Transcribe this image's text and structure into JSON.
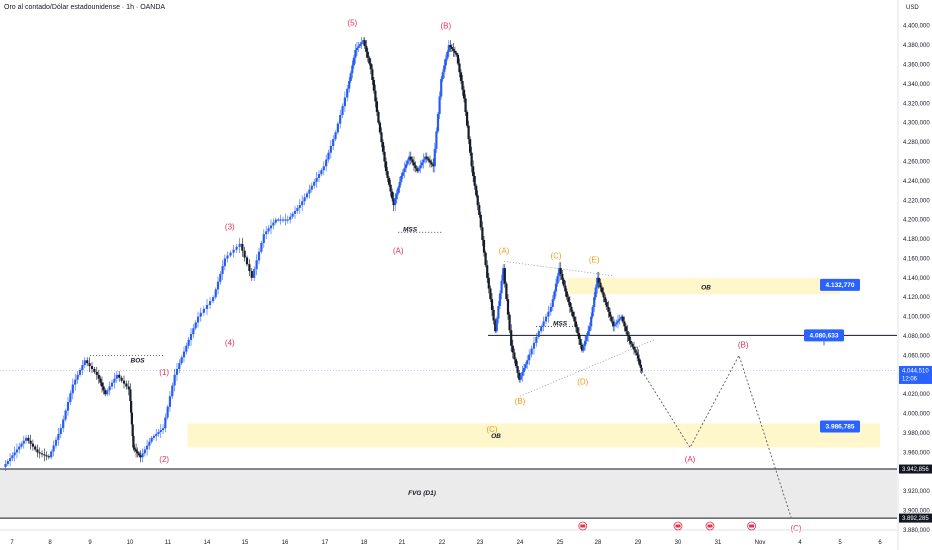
{
  "header": {
    "title": "Oro al contado/Dólar estadounidense · 1h · OANDA",
    "currency": "USD"
  },
  "chart_data": {
    "type": "candlestick",
    "ylim": [
      3880,
      4410
    ],
    "y_ticks": [
      {
        "value": 4400,
        "label": "4.400,000"
      },
      {
        "value": 4380,
        "label": "4.380,000"
      },
      {
        "value": 4360,
        "label": "4.360,000"
      },
      {
        "value": 4340,
        "label": "4.340,000"
      },
      {
        "value": 4320,
        "label": "4.320,000"
      },
      {
        "value": 4300,
        "label": "4.300,000"
      },
      {
        "value": 4280,
        "label": "4.280,000"
      },
      {
        "value": 4260,
        "label": "4.260,000"
      },
      {
        "value": 4240,
        "label": "4.240,000"
      },
      {
        "value": 4220,
        "label": "4.220,000"
      },
      {
        "value": 4200,
        "label": "4.200,000"
      },
      {
        "value": 4180,
        "label": "4.180,000"
      },
      {
        "value": 4160,
        "label": "4.160,000"
      },
      {
        "value": 4140,
        "label": "4.140,000"
      },
      {
        "value": 4120,
        "label": "4.120,000"
      },
      {
        "value": 4100,
        "label": "4.100,000"
      },
      {
        "value": 4080,
        "label": "4.080,000"
      },
      {
        "value": 4060,
        "label": "4.060,000"
      },
      {
        "value": 4020,
        "label": "4.020,000"
      },
      {
        "value": 4000,
        "label": "4.000,000"
      },
      {
        "value": 3980,
        "label": "3.980,000"
      },
      {
        "value": 3960,
        "label": "3.960,000"
      },
      {
        "value": 3920,
        "label": "3.920,000"
      },
      {
        "value": 3900,
        "label": "3.900,000"
      },
      {
        "value": 3880,
        "label": "3.880,000"
      }
    ],
    "x_ticks": [
      {
        "label": "7",
        "day": 7
      },
      {
        "label": "8",
        "day": 8
      },
      {
        "label": "9",
        "day": 9
      },
      {
        "label": "10",
        "day": 10
      },
      {
        "label": "11",
        "day": 11
      },
      {
        "label": "14",
        "day": 12
      },
      {
        "label": "15",
        "day": 13
      },
      {
        "label": "16",
        "day": 14
      },
      {
        "label": "17",
        "day": 15
      },
      {
        "label": "18",
        "day": 16
      },
      {
        "label": "21",
        "day": 17
      },
      {
        "label": "22",
        "day": 18
      },
      {
        "label": "23",
        "day": 19
      },
      {
        "label": "24",
        "day": 20
      },
      {
        "label": "25",
        "day": 21
      },
      {
        "label": "28",
        "day": 22
      },
      {
        "label": "29",
        "day": 23
      },
      {
        "label": "30",
        "day": 24
      },
      {
        "label": "31",
        "day": 25
      },
      {
        "label": "Nov",
        "day": 26
      },
      {
        "label": "4",
        "day": 27
      },
      {
        "label": "5",
        "day": 28
      },
      {
        "label": "6",
        "day": 29
      }
    ],
    "price_path": [
      [
        6.8,
        3945
      ],
      [
        7.1,
        3960
      ],
      [
        7.4,
        3975
      ],
      [
        7.7,
        3960
      ],
      [
        8.0,
        3955
      ],
      [
        8.3,
        3985
      ],
      [
        8.6,
        4030
      ],
      [
        8.9,
        4055
      ],
      [
        9.2,
        4040
      ],
      [
        9.4,
        4020
      ],
      [
        9.7,
        4040
      ],
      [
        10.0,
        4025
      ],
      [
        10.1,
        3965
      ],
      [
        10.3,
        3955
      ],
      [
        10.6,
        3975
      ],
      [
        10.9,
        3985
      ],
      [
        11.2,
        4040
      ],
      [
        11.5,
        4070
      ],
      [
        11.8,
        4100
      ],
      [
        12.2,
        4120
      ],
      [
        12.5,
        4160
      ],
      [
        12.9,
        4175
      ],
      [
        13.2,
        4140
      ],
      [
        13.5,
        4185
      ],
      [
        13.8,
        4200
      ],
      [
        14.1,
        4200
      ],
      [
        14.4,
        4215
      ],
      [
        14.7,
        4235
      ],
      [
        15.0,
        4255
      ],
      [
        15.3,
        4290
      ],
      [
        15.6,
        4335
      ],
      [
        15.8,
        4375
      ],
      [
        16.0,
        4385
      ],
      [
        16.2,
        4355
      ],
      [
        16.4,
        4300
      ],
      [
        16.6,
        4250
      ],
      [
        16.8,
        4215
      ],
      [
        17.0,
        4245
      ],
      [
        17.2,
        4265
      ],
      [
        17.4,
        4250
      ],
      [
        17.6,
        4265
      ],
      [
        17.8,
        4255
      ],
      [
        18.0,
        4345
      ],
      [
        18.2,
        4380
      ],
      [
        18.4,
        4370
      ],
      [
        18.6,
        4325
      ],
      [
        18.8,
        4255
      ],
      [
        19.0,
        4205
      ],
      [
        19.2,
        4140
      ],
      [
        19.4,
        4085
      ],
      [
        19.6,
        4150
      ],
      [
        19.8,
        4070
      ],
      [
        20.0,
        4035
      ],
      [
        20.2,
        4055
      ],
      [
        20.5,
        4085
      ],
      [
        20.8,
        4110
      ],
      [
        21.0,
        4150
      ],
      [
        21.2,
        4120
      ],
      [
        21.4,
        4095
      ],
      [
        21.6,
        4065
      ],
      [
        21.8,
        4090
      ],
      [
        22.0,
        4140
      ],
      [
        22.2,
        4115
      ],
      [
        22.4,
        4090
      ],
      [
        22.6,
        4100
      ],
      [
        22.8,
        4075
      ],
      [
        23.0,
        4060
      ],
      [
        23.1,
        4044
      ]
    ],
    "projection": [
      {
        "day": 23.1,
        "price": 4044
      },
      {
        "day": 24.3,
        "price": 3965
      },
      {
        "day": 25.5,
        "price": 4060
      },
      {
        "day": 26.8,
        "price": 3890
      }
    ],
    "current_price": {
      "value": 4044.51,
      "label": "4.044,510",
      "timer": "12:06"
    },
    "zones": [
      {
        "name": "OB",
        "from": 4123,
        "to": 4140,
        "start_day": 21.2,
        "end_day": 28.0,
        "color": "#fff7cc"
      },
      {
        "name": "OB",
        "from": 3965,
        "to": 3990,
        "start_day": 11.5,
        "end_day": 29.0,
        "color": "#fff7cc"
      },
      {
        "name": "FVG (D1)",
        "from": 3892.285,
        "to": 3942.856,
        "start_day": 0,
        "end_day": 30.0,
        "color": "#ebebeb"
      }
    ],
    "levels": [
      {
        "value": 4080.633,
        "label": "4.080,633",
        "start_day": 19.2,
        "style": "solid"
      },
      {
        "value": 3942.856,
        "label": "3.942,856",
        "start_day": 0,
        "style": "solid"
      },
      {
        "value": 3892.285,
        "label": "3.892,285",
        "start_day": 0,
        "style": "solid"
      }
    ],
    "price_boxes": [
      {
        "label": "4.132,770",
        "value": 4132.77,
        "day": 28.0
      },
      {
        "label": "4.080,633",
        "value": 4080.633,
        "day": 27.6
      },
      {
        "label": "3.986,785",
        "value": 3986.785,
        "day": 28.0
      }
    ],
    "annotations": [
      {
        "text": "BOS",
        "day": 10.2,
        "price": 4055
      },
      {
        "text": "MSS",
        "day": 17.2,
        "price": 4190
      },
      {
        "text": "MSS",
        "day": 21.0,
        "price": 4093
      },
      {
        "text": "OB",
        "day": 24.7,
        "price": 4130
      },
      {
        "text": "OB",
        "day": 19.4,
        "price": 3977
      },
      {
        "text": "FVG (D1)",
        "day": 17.5,
        "price": 3918
      }
    ],
    "waves_red": [
      {
        "text": "(5)",
        "day": 15.7,
        "price": 4400
      },
      {
        "text": "(B)",
        "day": 18.1,
        "price": 4397
      },
      {
        "text": "(3)",
        "day": 12.6,
        "price": 4190
      },
      {
        "text": "(4)",
        "day": 12.6,
        "price": 4070
      },
      {
        "text": "(A)",
        "day": 16.9,
        "price": 4165
      },
      {
        "text": "(1)",
        "day": 10.9,
        "price": 4040
      },
      {
        "text": "(2)",
        "day": 10.9,
        "price": 3950
      },
      {
        "text": "(B)",
        "day": 25.6,
        "price": 4068
      },
      {
        "text": "(A)",
        "day": 24.3,
        "price": 3950
      },
      {
        "text": "(C)",
        "day": 26.9,
        "price": 3879
      }
    ],
    "waves_orange": [
      {
        "text": "(A)",
        "day": 19.6,
        "price": 4165
      },
      {
        "text": "(C)",
        "day": 20.9,
        "price": 4160
      },
      {
        "text": "(E)",
        "day": 21.9,
        "price": 4156
      },
      {
        "text": "(D)",
        "day": 21.6,
        "price": 4030
      },
      {
        "text": "(B)",
        "day": 20.0,
        "price": 4010
      },
      {
        "text": "(C)",
        "day": 19.3,
        "price": 3981
      }
    ]
  }
}
